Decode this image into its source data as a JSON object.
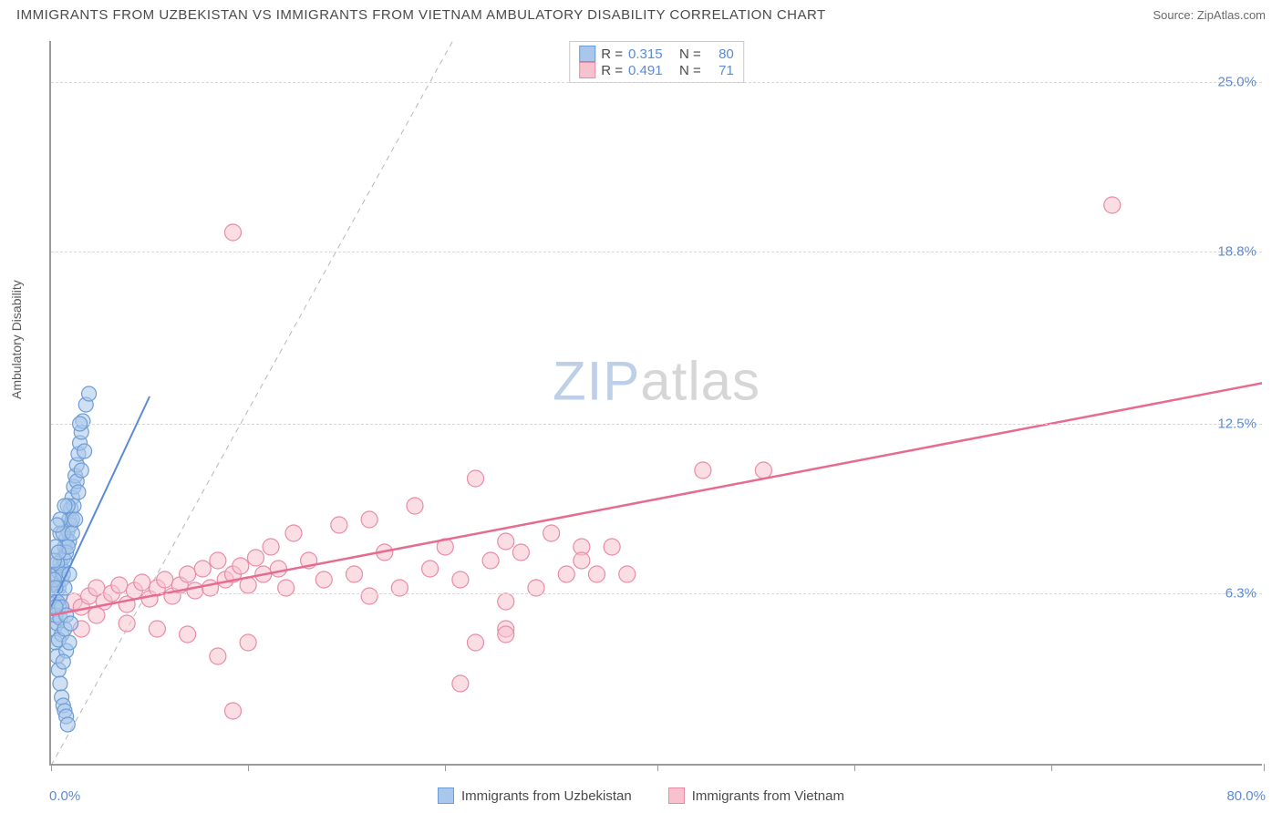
{
  "title": "IMMIGRANTS FROM UZBEKISTAN VS IMMIGRANTS FROM VIETNAM AMBULATORY DISABILITY CORRELATION CHART",
  "source": "Source: ZipAtlas.com",
  "ylabel": "Ambulatory Disability",
  "watermark_zip": "ZIP",
  "watermark_atlas": "atlas",
  "chart": {
    "type": "scatter",
    "xlim": [
      0,
      80
    ],
    "ylim": [
      0,
      26.5
    ],
    "xticks_major": [
      0,
      13,
      26,
      40,
      53,
      66,
      80
    ],
    "xtick_labels": {
      "0": "0.0%",
      "80": "80.0%"
    },
    "yticks": [
      6.3,
      12.5,
      18.8,
      25.0
    ],
    "ytick_labels": [
      "6.3%",
      "12.5%",
      "18.8%",
      "25.0%"
    ],
    "grid_color": "#d8d8d8",
    "axis_color": "#9a9a9a",
    "background_color": "#ffffff",
    "reference_line": {
      "from": [
        0,
        0
      ],
      "to": [
        26.5,
        26.5
      ],
      "color": "#b8b8b8",
      "dash": "6,5",
      "width": 1
    },
    "series": [
      {
        "name": "Immigrants from Uzbekistan",
        "fill": "#a9c7ea",
        "stroke": "#6d9dd6",
        "opacity": 0.55,
        "marker_r": 8,
        "R": "0.315",
        "N": "80",
        "trend": {
          "from": [
            0,
            5.8
          ],
          "to": [
            6.5,
            13.5
          ],
          "color": "#5b8bd4",
          "width": 2
        },
        "points": [
          [
            0.2,
            6.2
          ],
          [
            0.3,
            6.4
          ],
          [
            0.4,
            6.8
          ],
          [
            0.5,
            7.1
          ],
          [
            0.3,
            7.0
          ],
          [
            0.6,
            7.4
          ],
          [
            0.7,
            7.2
          ],
          [
            0.5,
            6.5
          ],
          [
            0.8,
            7.6
          ],
          [
            0.9,
            8.0
          ],
          [
            1.0,
            8.3
          ],
          [
            1.1,
            8.6
          ],
          [
            0.9,
            7.5
          ],
          [
            1.2,
            9.0
          ],
          [
            0.7,
            6.8
          ],
          [
            0.4,
            7.4
          ],
          [
            1.3,
            9.4
          ],
          [
            1.4,
            9.8
          ],
          [
            1.5,
            10.2
          ],
          [
            1.2,
            8.2
          ],
          [
            1.6,
            10.6
          ],
          [
            1.7,
            11.0
          ],
          [
            1.0,
            7.8
          ],
          [
            0.6,
            6.2
          ],
          [
            1.8,
            11.4
          ],
          [
            1.9,
            11.8
          ],
          [
            2.0,
            12.2
          ],
          [
            1.5,
            9.5
          ],
          [
            2.1,
            12.6
          ],
          [
            1.3,
            8.8
          ],
          [
            0.8,
            7.0
          ],
          [
            0.5,
            5.8
          ],
          [
            2.3,
            13.2
          ],
          [
            1.7,
            10.4
          ],
          [
            1.1,
            8.0
          ],
          [
            2.5,
            13.6
          ],
          [
            0.9,
            6.5
          ],
          [
            1.4,
            9.0
          ],
          [
            0.3,
            8.0
          ],
          [
            0.6,
            8.5
          ],
          [
            0.2,
            5.0
          ],
          [
            0.3,
            4.5
          ],
          [
            0.4,
            4.0
          ],
          [
            0.5,
            3.5
          ],
          [
            0.6,
            3.0
          ],
          [
            0.7,
            2.5
          ],
          [
            0.8,
            2.2
          ],
          [
            0.9,
            2.0
          ],
          [
            1.0,
            1.8
          ],
          [
            1.1,
            1.5
          ],
          [
            0.4,
            5.2
          ],
          [
            0.7,
            4.8
          ],
          [
            1.0,
            4.2
          ],
          [
            0.5,
            4.6
          ],
          [
            0.8,
            3.8
          ],
          [
            0.3,
            5.5
          ],
          [
            0.6,
            5.4
          ],
          [
            0.9,
            5.0
          ],
          [
            1.2,
            4.5
          ],
          [
            0.2,
            6.8
          ],
          [
            0.4,
            6.0
          ],
          [
            0.7,
            5.8
          ],
          [
            1.0,
            5.5
          ],
          [
            1.3,
            5.2
          ],
          [
            0.2,
            7.5
          ],
          [
            0.3,
            6.5
          ],
          [
            0.5,
            7.8
          ],
          [
            0.8,
            8.5
          ],
          [
            1.1,
            9.5
          ],
          [
            1.4,
            8.5
          ],
          [
            1.6,
            9.0
          ],
          [
            1.8,
            10.0
          ],
          [
            2.0,
            10.8
          ],
          [
            1.2,
            7.0
          ],
          [
            0.6,
            9.0
          ],
          [
            0.9,
            9.5
          ],
          [
            0.4,
            8.8
          ],
          [
            2.2,
            11.5
          ],
          [
            1.9,
            12.5
          ],
          [
            0.3,
            5.8
          ]
        ]
      },
      {
        "name": "Immigrants from Vietnam",
        "fill": "#f5c2cd",
        "stroke": "#e98ba4",
        "opacity": 0.55,
        "marker_r": 9,
        "R": "0.491",
        "N": "71",
        "trend": {
          "from": [
            0,
            5.5
          ],
          "to": [
            80,
            14.0
          ],
          "color": "#e76b8e",
          "width": 2.5
        },
        "points": [
          [
            1.5,
            6.0
          ],
          [
            2.0,
            5.8
          ],
          [
            2.5,
            6.2
          ],
          [
            3.0,
            6.5
          ],
          [
            3.5,
            6.0
          ],
          [
            4.0,
            6.3
          ],
          [
            4.5,
            6.6
          ],
          [
            5.0,
            5.9
          ],
          [
            5.5,
            6.4
          ],
          [
            6.0,
            6.7
          ],
          [
            6.5,
            6.1
          ],
          [
            7.0,
            6.5
          ],
          [
            7.5,
            6.8
          ],
          [
            8.0,
            6.2
          ],
          [
            8.5,
            6.6
          ],
          [
            9.0,
            7.0
          ],
          [
            9.5,
            6.4
          ],
          [
            10.0,
            7.2
          ],
          [
            10.5,
            6.5
          ],
          [
            11.0,
            7.5
          ],
          [
            11.5,
            6.8
          ],
          [
            12.0,
            7.0
          ],
          [
            12.5,
            7.3
          ],
          [
            13.0,
            6.6
          ],
          [
            13.5,
            7.6
          ],
          [
            14.0,
            7.0
          ],
          [
            14.5,
            8.0
          ],
          [
            15.0,
            7.2
          ],
          [
            15.5,
            6.5
          ],
          [
            16.0,
            8.5
          ],
          [
            17.0,
            7.5
          ],
          [
            18.0,
            6.8
          ],
          [
            19.0,
            8.8
          ],
          [
            20.0,
            7.0
          ],
          [
            21.0,
            9.0
          ],
          [
            21.0,
            6.2
          ],
          [
            22.0,
            7.8
          ],
          [
            23.0,
            6.5
          ],
          [
            24.0,
            9.5
          ],
          [
            25.0,
            7.2
          ],
          [
            26.0,
            8.0
          ],
          [
            27.0,
            6.8
          ],
          [
            28.0,
            10.5
          ],
          [
            29.0,
            7.5
          ],
          [
            30.0,
            8.2
          ],
          [
            30.0,
            6.0
          ],
          [
            31.0,
            7.8
          ],
          [
            32.0,
            6.5
          ],
          [
            33.0,
            8.5
          ],
          [
            34.0,
            7.0
          ],
          [
            35.0,
            8.0
          ],
          [
            36.0,
            7.0
          ],
          [
            37.0,
            8.0
          ],
          [
            38.0,
            7.0
          ],
          [
            43.0,
            10.8
          ],
          [
            47.0,
            10.8
          ],
          [
            12.0,
            19.5
          ],
          [
            11.0,
            4.0
          ],
          [
            12.0,
            2.0
          ],
          [
            13.0,
            4.5
          ],
          [
            27.0,
            3.0
          ],
          [
            30.0,
            5.0
          ],
          [
            30.0,
            4.8
          ],
          [
            28.0,
            4.5
          ],
          [
            7.0,
            5.0
          ],
          [
            9.0,
            4.8
          ],
          [
            5.0,
            5.2
          ],
          [
            3.0,
            5.5
          ],
          [
            2.0,
            5.0
          ],
          [
            70.0,
            20.5
          ],
          [
            35.0,
            7.5
          ]
        ]
      }
    ],
    "legend_bottom": [
      {
        "label": "Immigrants from Uzbekistan",
        "fill": "#a9c7ea",
        "stroke": "#6d9dd6"
      },
      {
        "label": "Immigrants from Vietnam",
        "fill": "#f5c2cd",
        "stroke": "#e98ba4"
      }
    ]
  }
}
